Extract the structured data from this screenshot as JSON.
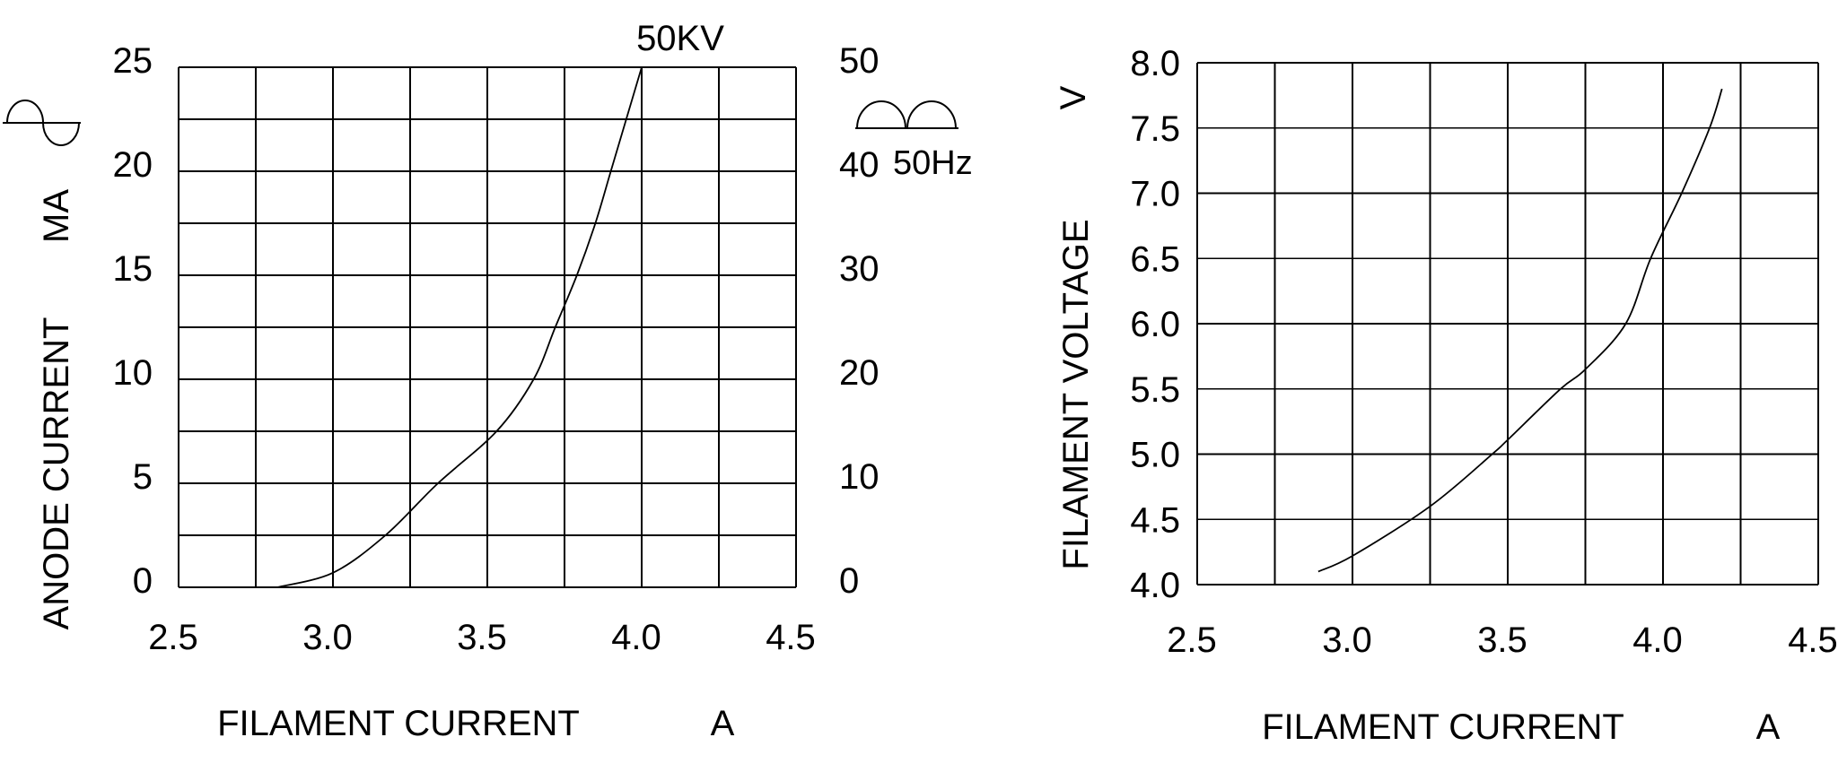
{
  "page": {
    "background": "#ffffff",
    "line_color": "#000000"
  },
  "chart_data": [
    {
      "id": "anode-current-chart",
      "type": "line",
      "x_axis": {
        "label": "FILAMENT CURRENT",
        "unit": "A",
        "min": 2.5,
        "max": 4.5,
        "grid_step": 0.25,
        "ticks": [
          "2.5",
          "3.0",
          "3.5",
          "4.0",
          "4.5"
        ],
        "tick_values": [
          2.5,
          3.0,
          3.5,
          4.0,
          4.5
        ]
      },
      "y_axis": {
        "label": "ANODE CURRENT",
        "unit": "MA",
        "min": 0,
        "max": 25,
        "grid_step": 2.5,
        "ticks": [
          "25",
          "20",
          "15",
          "10",
          "5",
          "0"
        ],
        "tick_values": [
          25,
          20,
          15,
          10,
          5,
          0
        ]
      },
      "y2_axis": {
        "label": "50Hz",
        "min": 0,
        "max": 50,
        "grid_step": 10,
        "ticks": [
          "50",
          "40",
          "30",
          "20",
          "10",
          "0"
        ],
        "tick_values": [
          50,
          40,
          30,
          20,
          10,
          0
        ]
      },
      "icons": [
        "ac-sine-wave-icon",
        "full-wave-rectified-icon"
      ],
      "series": [
        {
          "name": "50KV",
          "points": [
            [
              2.82,
              0
            ],
            [
              3.0,
              0.7
            ],
            [
              3.17,
              2.5
            ],
            [
              3.34,
              5.0
            ],
            [
              3.53,
              7.5
            ],
            [
              3.65,
              10.0
            ],
            [
              3.72,
              12.5
            ],
            [
              3.79,
              15.0
            ],
            [
              3.85,
              17.5
            ],
            [
              3.9,
              20.0
            ],
            [
              3.95,
              22.5
            ],
            [
              4.0,
              25.0
            ]
          ]
        }
      ]
    },
    {
      "id": "filament-voltage-chart",
      "type": "line",
      "x_axis": {
        "label": "FILAMENT CURRENT",
        "unit": "A",
        "min": 2.5,
        "max": 4.5,
        "grid_step": 0.25,
        "ticks": [
          "2.5",
          "3.0",
          "3.5",
          "4.0",
          "4.5"
        ],
        "tick_values": [
          2.5,
          3.0,
          3.5,
          4.0,
          4.5
        ]
      },
      "y_axis": {
        "label": "FILAMENT VOLTAGE",
        "unit": "V",
        "min": 4.0,
        "max": 8.0,
        "grid_step": 0.5,
        "ticks": [
          "8.0",
          "7.5",
          "7.0",
          "6.5",
          "6.0",
          "5.5",
          "5.0",
          "4.5",
          "4.0"
        ],
        "tick_values": [
          8.0,
          7.5,
          7.0,
          6.5,
          6.0,
          5.5,
          5.0,
          4.5,
          4.0
        ]
      },
      "series": [
        {
          "name": "",
          "points": [
            [
              2.89,
              4.1
            ],
            [
              3.0,
              4.22
            ],
            [
              3.25,
              4.6
            ],
            [
              3.45,
              5.0
            ],
            [
              3.5,
              5.11
            ],
            [
              3.67,
              5.5
            ],
            [
              3.75,
              5.65
            ],
            [
              3.88,
              6.0
            ],
            [
              3.96,
              6.5
            ],
            [
              4.06,
              7.0
            ],
            [
              4.15,
              7.5
            ],
            [
              4.19,
              7.8
            ]
          ]
        }
      ]
    }
  ]
}
